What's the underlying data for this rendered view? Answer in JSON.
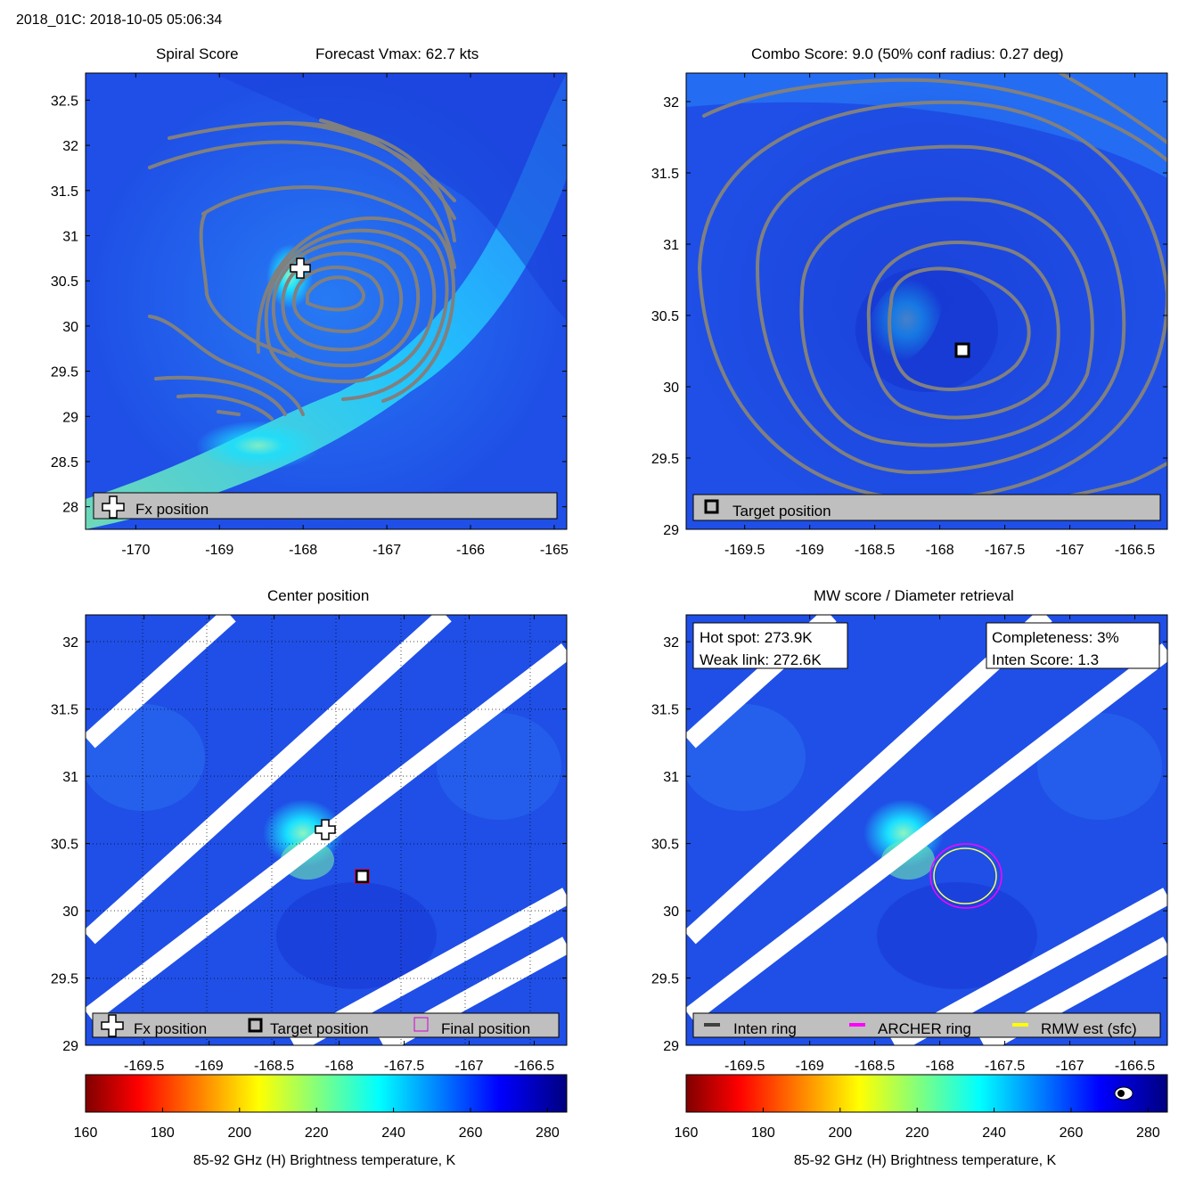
{
  "suptitle": "2018_01C: 2018-10-05 05:06:34",
  "colors": {
    "field_background": "#1f4fe6",
    "contour": "#808080",
    "legend_background": "#bfbfbf",
    "swath_gap": "#ffffff",
    "archer_ring": "#ff00ff",
    "rmw_ring": "#ffff00",
    "inten_ring": "#404040"
  },
  "panels": {
    "spiral": {
      "title_left": "Spiral Score",
      "title_right": "Forecast Vmax: 62.7 kts",
      "legend": {
        "marker_icon": "plus-marker-icon",
        "label": "Fx position"
      }
    },
    "combo": {
      "title": "Combo Score: 9.0  (50% conf radius: 0.27 deg)",
      "legend": {
        "marker_icon": "square-marker-icon",
        "label": "Target position"
      }
    },
    "center": {
      "title": "Center position",
      "legend": [
        {
          "icon": "plus-marker-icon",
          "label": "Fx position"
        },
        {
          "icon": "square-marker-icon",
          "label": "Target position"
        },
        {
          "icon": "magenta-square-icon",
          "label": "Final position"
        }
      ]
    },
    "mw": {
      "title": "MW score / Diameter retrieval",
      "hot_spot": "Hot spot: 273.9K",
      "weak_link": "Weak link: 272.6K",
      "completeness": "Completeness: 3%",
      "inten_score": "Inten Score: 1.3",
      "legend": [
        {
          "icon": "dark-line-icon",
          "label": "Inten ring"
        },
        {
          "icon": "magenta-line-icon",
          "label": "ARCHER ring"
        },
        {
          "icon": "yellow-line-icon",
          "label": "RMW est (sfc)"
        }
      ]
    }
  },
  "colorbar": {
    "label": "85-92 GHz (H) Brightness temperature, K",
    "ticks": [
      "160",
      "180",
      "200",
      "220",
      "240",
      "260",
      "280"
    ],
    "range": [
      160,
      285
    ],
    "colormap": "jet"
  },
  "chart_data": [
    {
      "type": "heatmap",
      "panel": "Spiral Score",
      "xlim": [
        -170.6,
        -164.85
      ],
      "ylim": [
        27.75,
        32.8
      ],
      "xticks": [
        "-170",
        "-169",
        "-168",
        "-167",
        "-166",
        "-165"
      ],
      "yticks": [
        "28",
        "28.5",
        "29",
        "29.5",
        "30",
        "30.5",
        "31",
        "31.5",
        "32",
        "32.5"
      ],
      "markers": [
        {
          "kind": "Fx position",
          "lon": -168.0,
          "lat": 30.6
        }
      ],
      "contours": true
    },
    {
      "type": "heatmap",
      "panel": "Combo Score",
      "xlim": [
        -169.95,
        -166.25
      ],
      "ylim": [
        29.0,
        32.2
      ],
      "xticks": [
        "-169.5",
        "-169",
        "-168.5",
        "-168",
        "-167.5",
        "-167",
        "-166.5"
      ],
      "yticks": [
        "29",
        "29.5",
        "30",
        "30.5",
        "31",
        "31.5",
        "32"
      ],
      "markers": [
        {
          "kind": "Target position",
          "lon": -167.78,
          "lat": 30.26
        }
      ],
      "contours": true
    },
    {
      "type": "heatmap",
      "panel": "Center position",
      "xlim": [
        -169.95,
        -166.25
      ],
      "ylim": [
        29.0,
        32.2
      ],
      "xticks": [
        "-169.5",
        "-169",
        "-168.5",
        "-168",
        "-167.5",
        "-167",
        "-166.5"
      ],
      "yticks": [
        "29",
        "29.5",
        "30",
        "30.5",
        "31",
        "31.5",
        "32"
      ],
      "grid": true,
      "markers": [
        {
          "kind": "Fx position",
          "lon": -168.0,
          "lat": 30.6
        },
        {
          "kind": "Target position",
          "lon": -167.78,
          "lat": 30.26
        }
      ]
    },
    {
      "type": "heatmap",
      "panel": "MW score / Diameter retrieval",
      "xlim": [
        -169.95,
        -166.25
      ],
      "ylim": [
        29.0,
        32.2
      ],
      "xticks": [
        "-169.5",
        "-169",
        "-168.5",
        "-168",
        "-167.5",
        "-167",
        "-166.5"
      ],
      "yticks": [
        "29",
        "29.5",
        "30",
        "30.5",
        "31",
        "31.5",
        "32"
      ],
      "rings": [
        {
          "kind": "ARCHER ring",
          "lon": -167.67,
          "lat": 30.25,
          "radius_deg": 0.26
        },
        {
          "kind": "RMW est (sfc)",
          "lon": -167.67,
          "lat": 30.25,
          "radius_deg": 0.22
        }
      ]
    }
  ]
}
